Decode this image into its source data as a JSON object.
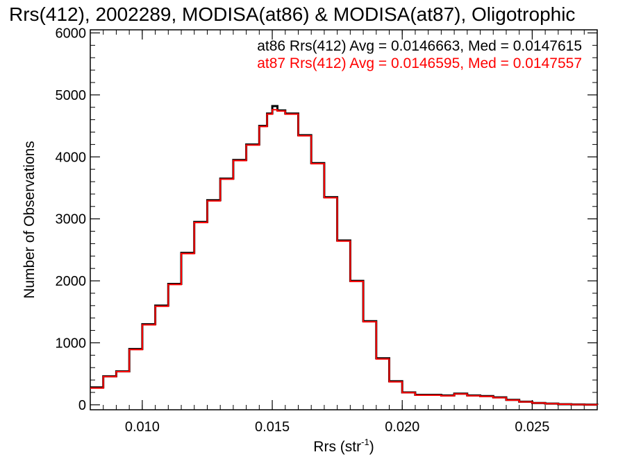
{
  "chart_data": {
    "type": "histogram-step",
    "title": "Rrs(412), 2002289, MODISA(at86) & MODISA(at87), Oligotrophic",
    "xlabel": "Rrs (str",
    "xlabel_sup": "-1",
    "xlabel_end": ")",
    "ylabel": "Number of Observations",
    "xlim": [
      0.008,
      0.0275
    ],
    "ylim": [
      -80,
      6050
    ],
    "x_ticks": [
      {
        "value": 0.01,
        "label": "0.010"
      },
      {
        "value": 0.015,
        "label": "0.015"
      },
      {
        "value": 0.02,
        "label": "0.020"
      },
      {
        "value": 0.025,
        "label": "0.025"
      }
    ],
    "y_ticks": [
      {
        "value": 0,
        "label": "0"
      },
      {
        "value": 1000,
        "label": "1000"
      },
      {
        "value": 2000,
        "label": "2000"
      },
      {
        "value": 3000,
        "label": "3000"
      },
      {
        "value": 4000,
        "label": "4000"
      },
      {
        "value": 5000,
        "label": "5000"
      },
      {
        "value": 6000,
        "label": "6000"
      }
    ],
    "annotations": [
      {
        "text": "at86 Rrs(412) Avg = 0.0146663, Med = 0.0147615",
        "color": "#000000"
      },
      {
        "text": "at87 Rrs(412) Avg = 0.0146595, Med = 0.0147557",
        "color": "#ff0000"
      }
    ],
    "series": [
      {
        "color": "#000000",
        "x": [
          0.008,
          0.0085,
          0.009,
          0.0095,
          0.01,
          0.0105,
          0.011,
          0.0115,
          0.012,
          0.0125,
          0.013,
          0.0135,
          0.014,
          0.0145,
          0.0148,
          0.015,
          0.0152,
          0.0155,
          0.016,
          0.0165,
          0.017,
          0.0175,
          0.018,
          0.0185,
          0.019,
          0.0195,
          0.02,
          0.0205,
          0.021,
          0.0215,
          0.022,
          0.0225,
          0.023,
          0.0235,
          0.024,
          0.0245,
          0.025,
          0.0255,
          0.026,
          0.0265,
          0.027,
          0.0275
        ],
        "y": [
          280,
          460,
          540,
          900,
          1300,
          1600,
          1950,
          2450,
          2950,
          3300,
          3650,
          3950,
          4200,
          4500,
          4700,
          4820,
          4750,
          4700,
          4350,
          3900,
          3350,
          2650,
          2000,
          1350,
          750,
          380,
          200,
          160,
          160,
          150,
          180,
          150,
          140,
          120,
          80,
          50,
          30,
          20,
          10,
          5,
          3,
          0
        ]
      },
      {
        "color": "#ff0000",
        "x": [
          0.008,
          0.0085,
          0.009,
          0.0095,
          0.01,
          0.0105,
          0.011,
          0.0115,
          0.012,
          0.0125,
          0.013,
          0.0135,
          0.014,
          0.0145,
          0.0148,
          0.015,
          0.0152,
          0.0155,
          0.016,
          0.0165,
          0.017,
          0.0175,
          0.018,
          0.0185,
          0.019,
          0.0195,
          0.02,
          0.0205,
          0.021,
          0.0215,
          0.022,
          0.0225,
          0.023,
          0.0235,
          0.024,
          0.0245,
          0.025,
          0.0255,
          0.026,
          0.0265,
          0.027,
          0.0275
        ],
        "y": [
          270,
          455,
          535,
          890,
          1290,
          1590,
          1940,
          2440,
          2940,
          3290,
          3640,
          3940,
          4190,
          4490,
          4690,
          4760,
          4740,
          4690,
          4340,
          3890,
          3340,
          2640,
          1990,
          1340,
          740,
          370,
          195,
          155,
          155,
          145,
          175,
          145,
          135,
          115,
          75,
          48,
          28,
          18,
          9,
          4,
          2,
          0
        ]
      }
    ]
  }
}
